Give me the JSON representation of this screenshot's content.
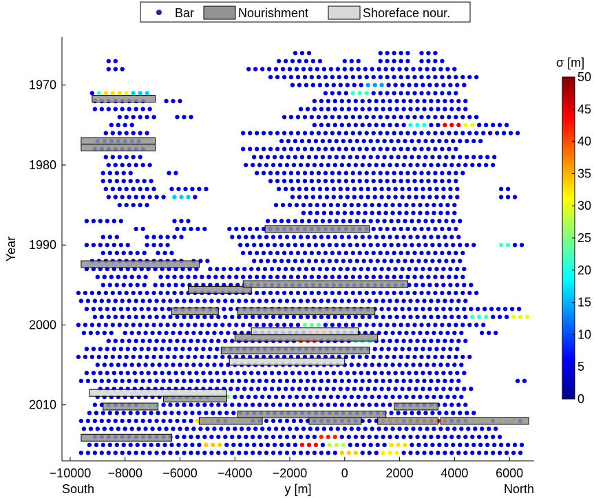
{
  "chart_data": {
    "type": "scatter",
    "xlabel": "y [m]",
    "ylabel": "Year",
    "x_left_note": "South",
    "x_right_note": "North",
    "xlim": [
      -10300,
      6900
    ],
    "ylim": [
      2017,
      1964
    ],
    "xticks": [
      -10000,
      -8000,
      -6000,
      -4000,
      -2000,
      0,
      2000,
      4000,
      6000
    ],
    "xtick_labels": [
      "−10000",
      "−8000",
      "−6000",
      "−4000",
      "−2000",
      "0",
      "2000",
      "4000",
      "6000"
    ],
    "yticks": [
      1970,
      1980,
      1990,
      2000,
      2010
    ],
    "ytick_labels": [
      "1970",
      "1980",
      "1990",
      "2000",
      "2010"
    ],
    "legend": {
      "placement": "top-center",
      "entries": [
        {
          "label": "Bar",
          "kind": "marker",
          "color": "#1f2b8f"
        },
        {
          "label": "Nourishment",
          "kind": "patch",
          "color": "#939393"
        },
        {
          "label": "Shoreface nour.",
          "kind": "patch",
          "color": "#d8d8d8"
        }
      ]
    },
    "colorbar": {
      "label": "σ [m]",
      "min": 0,
      "max": 50,
      "ticks": [
        0,
        5,
        10,
        15,
        20,
        25,
        30,
        35,
        40,
        45,
        50
      ],
      "tick_labels": [
        "0",
        "5",
        "10",
        "15",
        "20",
        "25",
        "30",
        "35",
        "40",
        "45",
        "50"
      ]
    },
    "bar_spacing_m": 250,
    "bar_rows": [
      {
        "year": 1966,
        "segments": [
          [
            -1800,
            -1100
          ],
          [
            1300,
            2400
          ],
          [
            2800,
            3300
          ]
        ]
      },
      {
        "year": 1967,
        "segments": [
          [
            -8600,
            -8300
          ],
          [
            -2400,
            -700
          ],
          [
            0,
            500
          ],
          [
            1300,
            2400
          ],
          [
            2800,
            3700
          ]
        ]
      },
      {
        "year": 1968,
        "segments": [
          [
            -8600,
            -8100
          ],
          [
            -3500,
            4000
          ]
        ]
      },
      {
        "year": 1969,
        "segments": [
          [
            -2700,
            5000
          ]
        ]
      },
      {
        "year": 1970,
        "segments": [
          [
            -1900,
            4400
          ]
        ]
      },
      {
        "year": 1971,
        "segments": [
          [
            -9200,
            -7000
          ],
          [
            -700,
            4200
          ]
        ]
      },
      {
        "year": 1972,
        "segments": [
          [
            -9100,
            -7300
          ],
          [
            -6500,
            -5900
          ],
          [
            -1100,
            4500
          ]
        ]
      },
      {
        "year": 1973,
        "segments": [
          [
            -9100,
            -6900
          ],
          [
            -1600,
            4400
          ]
        ]
      },
      {
        "year": 1974,
        "segments": [
          [
            -8200,
            -6800
          ],
          [
            -6100,
            -5600
          ],
          [
            -2200,
            4900
          ]
        ]
      },
      {
        "year": 1975,
        "segments": [
          [
            -8500,
            -7600
          ],
          [
            -1100,
            5900
          ]
        ]
      },
      {
        "year": 1976,
        "segments": [
          [
            -8700,
            -7200
          ],
          [
            -3700,
            6500
          ]
        ]
      },
      {
        "year": 1977,
        "segments": [
          [
            -9000,
            -7300
          ],
          [
            -2300,
            5000
          ]
        ]
      },
      {
        "year": 1978,
        "segments": [
          [
            -9100,
            -7300
          ],
          [
            -3700,
            4200
          ]
        ]
      },
      {
        "year": 1979,
        "segments": [
          [
            -8700,
            -7300
          ],
          [
            -3300,
            5600
          ]
        ]
      },
      {
        "year": 1980,
        "segments": [
          [
            -8600,
            -7000
          ],
          [
            -3600,
            5400
          ]
        ]
      },
      {
        "year": 1981,
        "segments": [
          [
            -8800,
            -7600
          ],
          [
            -6400,
            -6000
          ],
          [
            -3200,
            4400
          ]
        ]
      },
      {
        "year": 1982,
        "segments": [
          [
            -8800,
            -7000
          ],
          [
            -2700,
            4100
          ]
        ]
      },
      {
        "year": 1983,
        "segments": [
          [
            -8700,
            -6900
          ],
          [
            -6300,
            -5000
          ],
          [
            -2400,
            4100
          ],
          [
            5700,
            6000
          ]
        ]
      },
      {
        "year": 1984,
        "segments": [
          [
            -8600,
            -6500
          ],
          [
            -6200,
            -5300
          ],
          [
            -1900,
            4100
          ],
          [
            5700,
            6200
          ]
        ]
      },
      {
        "year": 1985,
        "segments": [
          [
            -8200,
            -7200
          ],
          [
            -2500,
            4000
          ]
        ]
      },
      {
        "year": 1986,
        "segments": [
          [
            -1500,
            4000
          ]
        ]
      },
      {
        "year": 1987,
        "segments": [
          [
            -9400,
            -8000
          ],
          [
            -6200,
            -5500
          ],
          [
            -2800,
            4200
          ]
        ]
      },
      {
        "year": 1988,
        "segments": [
          [
            -7600,
            -7200
          ],
          [
            -6100,
            -5100
          ],
          [
            -4200,
            4200
          ]
        ]
      },
      {
        "year": 1989,
        "segments": [
          [
            -8800,
            -8200
          ],
          [
            -7200,
            -5900
          ],
          [
            -4100,
            4200
          ]
        ]
      },
      {
        "year": 1990,
        "segments": [
          [
            -9400,
            -7700
          ],
          [
            -7200,
            -6400
          ],
          [
            -3800,
            4700
          ],
          [
            5700,
            6600
          ]
        ]
      },
      {
        "year": 1991,
        "segments": [
          [
            -8800,
            -7200
          ],
          [
            -6800,
            -6300
          ],
          [
            -3700,
            4300
          ]
        ]
      },
      {
        "year": 1992,
        "segments": [
          [
            -9200,
            -5900
          ],
          [
            -5500,
            -4800
          ],
          [
            -3300,
            4400
          ]
        ]
      },
      {
        "year": 1993,
        "segments": [
          [
            -9400,
            -5300
          ],
          [
            -4900,
            4400
          ]
        ]
      },
      {
        "year": 1994,
        "segments": [
          [
            -9000,
            -7200
          ],
          [
            -6700,
            4400
          ]
        ]
      },
      {
        "year": 1995,
        "segments": [
          [
            -8800,
            -7200
          ],
          [
            -6900,
            4600
          ]
        ]
      },
      {
        "year": 1996,
        "segments": [
          [
            -9700,
            5000
          ]
        ]
      },
      {
        "year": 1997,
        "segments": [
          [
            -9600,
            4500
          ]
        ]
      },
      {
        "year": 1998,
        "segments": [
          [
            -9400,
            6400
          ]
        ]
      },
      {
        "year": 1999,
        "segments": [
          [
            -9100,
            6700
          ]
        ]
      },
      {
        "year": 2000,
        "segments": [
          [
            -9700,
            5100
          ]
        ]
      },
      {
        "year": 2001,
        "segments": [
          [
            -9500,
            -8400
          ],
          [
            -8000,
            4400
          ],
          [
            5000,
            5600
          ]
        ]
      },
      {
        "year": 2002,
        "segments": [
          [
            -8600,
            4500
          ]
        ]
      },
      {
        "year": 2003,
        "segments": [
          [
            -9400,
            4200
          ]
        ]
      },
      {
        "year": 2004,
        "segments": [
          [
            -9700,
            4600
          ]
        ]
      },
      {
        "year": 2005,
        "segments": [
          [
            -9000,
            4400
          ]
        ]
      },
      {
        "year": 2006,
        "segments": [
          [
            -9400,
            4500
          ]
        ]
      },
      {
        "year": 2007,
        "segments": [
          [
            -9600,
            4300
          ],
          [
            6300,
            6600
          ]
        ]
      },
      {
        "year": 2008,
        "segments": [
          [
            -8900,
            4600
          ]
        ]
      },
      {
        "year": 2009,
        "segments": [
          [
            -9000,
            4400
          ]
        ]
      },
      {
        "year": 2010,
        "segments": [
          [
            -9100,
            4600
          ]
        ]
      },
      {
        "year": 2011,
        "segments": [
          [
            -9300,
            4700
          ]
        ]
      },
      {
        "year": 2012,
        "segments": [
          [
            -9600,
            6600
          ]
        ]
      },
      {
        "year": 2013,
        "segments": [
          [
            -9500,
            5700
          ]
        ]
      },
      {
        "year": 2014,
        "segments": [
          [
            -9100,
            5800
          ]
        ]
      },
      {
        "year": 2015,
        "segments": [
          [
            -9300,
            6500
          ]
        ]
      },
      {
        "year": 2016,
        "segments": [
          [
            -9600,
            6600
          ]
        ]
      }
    ],
    "sigma_hotspots": [
      {
        "year": 1971,
        "x": -8800,
        "sigma": 23
      },
      {
        "year": 1971,
        "x": -8500,
        "sigma": 33
      },
      {
        "year": 1971,
        "x": -8200,
        "sigma": 30
      },
      {
        "year": 1971,
        "x": -7500,
        "sigma": 16
      },
      {
        "year": 1970,
        "x": 1200,
        "sigma": 14
      },
      {
        "year": 1971,
        "x": 500,
        "sigma": 22
      },
      {
        "year": 1975,
        "x": 3800,
        "sigma": 45
      },
      {
        "year": 1975,
        "x": 2700,
        "sigma": 20
      },
      {
        "year": 1975,
        "x": 4500,
        "sigma": 30
      },
      {
        "year": 1984,
        "x": -6000,
        "sigma": 16
      },
      {
        "year": 1990,
        "x": 5800,
        "sigma": 22
      },
      {
        "year": 1999,
        "x": 6300,
        "sigma": 30
      },
      {
        "year": 1999,
        "x": 4800,
        "sigma": 22
      },
      {
        "year": 2000,
        "x": -1200,
        "sigma": 24
      },
      {
        "year": 2001,
        "x": -1000,
        "sigma": 40
      },
      {
        "year": 2002,
        "x": -1300,
        "sigma": 42
      },
      {
        "year": 2002,
        "x": 600,
        "sigma": 22
      },
      {
        "year": 2009,
        "x": -4400,
        "sigma": 25
      },
      {
        "year": 2010,
        "x": -7200,
        "sigma": 22
      },
      {
        "year": 2012,
        "x": -5000,
        "sigma": 33
      },
      {
        "year": 2012,
        "x": -3800,
        "sigma": 28
      },
      {
        "year": 2012,
        "x": 1700,
        "sigma": 38
      },
      {
        "year": 2012,
        "x": 2600,
        "sigma": 44
      },
      {
        "year": 2012,
        "x": 3300,
        "sigma": 46
      },
      {
        "year": 2012,
        "x": 4800,
        "sigma": 30
      },
      {
        "year": 2012,
        "x": 5900,
        "sigma": 28
      },
      {
        "year": 2014,
        "x": -500,
        "sigma": 42
      },
      {
        "year": 2015,
        "x": -4700,
        "sigma": 34
      },
      {
        "year": 2015,
        "x": -1400,
        "sigma": 44
      },
      {
        "year": 2015,
        "x": -300,
        "sigma": 28
      },
      {
        "year": 2015,
        "x": 1900,
        "sigma": 33
      },
      {
        "year": 2016,
        "x": 100,
        "sigma": 34
      },
      {
        "year": 2016,
        "x": 1700,
        "sigma": 32
      }
    ],
    "nourishments": [
      {
        "type": "Nourishment",
        "x0": -9200,
        "x1": -6900,
        "year": 1971.7
      },
      {
        "type": "Nourishment",
        "x0": -9600,
        "x1": -6900,
        "year": 1977.0
      },
      {
        "type": "Nourishment",
        "x0": -9600,
        "x1": -6900,
        "year": 1977.8
      },
      {
        "type": "Nourishment",
        "x0": -2900,
        "x1": 900,
        "year": 1988.0
      },
      {
        "type": "Nourishment",
        "x0": -9600,
        "x1": -5300,
        "year": 1992.4
      },
      {
        "type": "Nourishment",
        "x0": -5700,
        "x1": -3400,
        "year": 1995.6
      },
      {
        "type": "Nourishment",
        "x0": -3700,
        "x1": 2300,
        "year": 1994.9
      },
      {
        "type": "Nourishment",
        "x0": -6300,
        "x1": -4600,
        "year": 1998.3
      },
      {
        "type": "Nourishment",
        "x0": -3900,
        "x1": 1100,
        "year": 1998.3
      },
      {
        "type": "Nourishment",
        "x0": -4000,
        "x1": 1200,
        "year": 2001.6
      },
      {
        "type": "Nourishment",
        "x0": -4500,
        "x1": 900,
        "year": 2003.2
      },
      {
        "type": "Nourishment",
        "x0": -8800,
        "x1": -6800,
        "year": 2010.2
      },
      {
        "type": "Nourishment",
        "x0": -6600,
        "x1": -4300,
        "year": 2009.2
      },
      {
        "type": "Nourishment",
        "x0": -3900,
        "x1": 1500,
        "year": 2011.2
      },
      {
        "type": "Nourishment",
        "x0": 1800,
        "x1": 3400,
        "year": 2010.2
      },
      {
        "type": "Nourishment",
        "x0": -1300,
        "x1": 600,
        "year": 2012.0
      },
      {
        "type": "Nourishment",
        "x0": 1200,
        "x1": 3400,
        "year": 2012.0
      },
      {
        "type": "Nourishment",
        "x0": 3500,
        "x1": 6700,
        "year": 2012.0
      },
      {
        "type": "Nourishment",
        "x0": -5300,
        "x1": -3000,
        "year": 2012.0
      },
      {
        "type": "Nourishment",
        "x0": -9600,
        "x1": -6300,
        "year": 2014.1
      },
      {
        "type": "Shoreface nour.",
        "x0": -9300,
        "x1": -4300,
        "year": 2008.5
      },
      {
        "type": "Shoreface nour.",
        "x0": -4200,
        "x1": 0,
        "year": 2004.6
      },
      {
        "type": "Shoreface nour.",
        "x0": -3400,
        "x1": 500,
        "year": 2000.8
      }
    ]
  }
}
